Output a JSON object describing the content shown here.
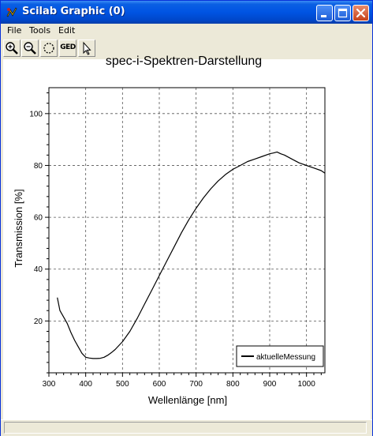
{
  "window": {
    "title": "Scilab Graphic (0)"
  },
  "menu": [
    {
      "label": "File"
    },
    {
      "label": "Tools"
    },
    {
      "label": "Edit"
    }
  ],
  "toolbar": {
    "zoom_in_icon": "zoom-in-icon",
    "zoom_out_icon": "zoom-out-icon",
    "rotate_icon": "rotate-icon",
    "ged_label": "GED",
    "pointer_icon": "pointer-icon"
  },
  "chart_data": {
    "type": "line",
    "title": "spec-i-Spektren-Darstellung",
    "xlabel": "Wellenlänge [nm]",
    "ylabel": "Transmission [%]",
    "xlim": [
      300,
      1050
    ],
    "ylim": [
      0,
      110
    ],
    "xticks": [
      300,
      400,
      500,
      600,
      700,
      800,
      900,
      1000
    ],
    "yticks": [
      20,
      40,
      60,
      80,
      100
    ],
    "grid": true,
    "legend_position": "bottom-right",
    "series": [
      {
        "name": "aktuelleMessung",
        "color": "#000000",
        "x": [
          323,
          330,
          340,
          350,
          360,
          370,
          380,
          390,
          400,
          410,
          420,
          430,
          440,
          450,
          460,
          470,
          480,
          490,
          500,
          520,
          540,
          560,
          580,
          600,
          620,
          640,
          660,
          680,
          700,
          720,
          740,
          760,
          780,
          800,
          820,
          840,
          860,
          880,
          900,
          910,
          920,
          930,
          940,
          960,
          980,
          1000,
          1020,
          1040,
          1050
        ],
        "y": [
          29,
          24,
          21.5,
          19,
          15.5,
          12.5,
          10,
          7.5,
          6,
          5.7,
          5.5,
          5.5,
          5.6,
          6,
          6.8,
          7.8,
          9,
          10.5,
          12,
          16,
          21,
          26.5,
          32,
          37.5,
          43,
          48.5,
          54,
          59,
          63.5,
          67.5,
          71,
          74,
          76.5,
          78.5,
          80,
          81.5,
          82.5,
          83.5,
          84.5,
          84.8,
          85.2,
          84.5,
          84,
          82.5,
          81,
          80,
          79,
          78,
          77
        ]
      }
    ]
  },
  "colors": {
    "titlebar": "#0054e3",
    "window_bg": "#ece9d8",
    "plot_bg": "#ffffff",
    "line": "#000000",
    "grid": "#555555"
  }
}
